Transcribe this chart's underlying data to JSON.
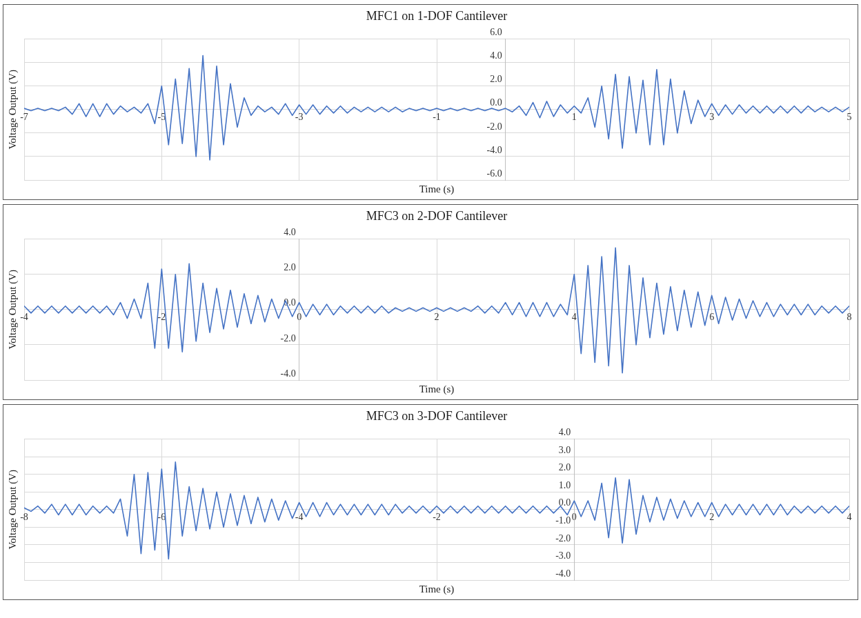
{
  "chart_data": [
    {
      "type": "line",
      "title": "MFC1 on 1-DOF Cantilever",
      "xlabel": "Time (s)",
      "ylabel": "Voltage Output (V)",
      "xlim": [
        -7,
        5
      ],
      "xticks": [
        -7,
        -5,
        -3,
        -1,
        1,
        3,
        5
      ],
      "ylim": [
        -6,
        6
      ],
      "yticks": [
        {
          "value": -6,
          "label": "-6.0"
        },
        {
          "value": -4,
          "label": "-4.0"
        },
        {
          "value": -2,
          "label": "-2.0"
        },
        {
          "value": 0,
          "label": "0.0"
        },
        {
          "value": 2,
          "label": "2.0"
        },
        {
          "value": 4,
          "label": "4.0"
        },
        {
          "value": 6,
          "label": "6.0"
        }
      ],
      "grid": true,
      "legend": false,
      "marker": "none",
      "line_style": "solid",
      "x": [
        -7,
        -6.9,
        -6.8,
        -6.7,
        -6.6,
        -6.5,
        -6.4,
        -6.3,
        -6.2,
        -6.1,
        -6,
        -5.9,
        -5.8,
        -5.7,
        -5.6,
        -5.5,
        -5.4,
        -5.3,
        -5.2,
        -5.1,
        -5,
        -4.9,
        -4.8,
        -4.7,
        -4.6,
        -4.5,
        -4.4,
        -4.3,
        -4.2,
        -4.1,
        -4,
        -3.9,
        -3.8,
        -3.7,
        -3.6,
        -3.5,
        -3.4,
        -3.3,
        -3.2,
        -3.1,
        -3,
        -2.9,
        -2.8,
        -2.7,
        -2.6,
        -2.5,
        -2.4,
        -2.3,
        -2.2,
        -2.1,
        -2,
        -1.9,
        -1.8,
        -1.7,
        -1.6,
        -1.5,
        -1.4,
        -1.3,
        -1.2,
        -1.1,
        -1,
        -0.9,
        -0.8,
        -0.7,
        -0.6,
        -0.5,
        -0.4,
        -0.3,
        -0.2,
        -0.1,
        0,
        0.1,
        0.2,
        0.3,
        0.4,
        0.5,
        0.6,
        0.7,
        0.8,
        0.9,
        1,
        1.1,
        1.2,
        1.3,
        1.4,
        1.5,
        1.6,
        1.7,
        1.8,
        1.9,
        2,
        2.1,
        2.2,
        2.3,
        2.4,
        2.5,
        2.6,
        2.7,
        2.8,
        2.9,
        3,
        3.1,
        3.2,
        3.3,
        3.4,
        3.5,
        3.6,
        3.7,
        3.8,
        3.9,
        4,
        4.1,
        4.2,
        4.3,
        4.4,
        4.5,
        4.6,
        4.7,
        4.8,
        4.9,
        5
      ],
      "series": [
        {
          "color": "#4472c4",
          "values": [
            0.1,
            -0.1,
            0.1,
            -0.1,
            0.1,
            -0.1,
            0.2,
            -0.4,
            0.5,
            -0.6,
            0.5,
            -0.6,
            0.5,
            -0.4,
            0.3,
            -0.2,
            0.2,
            -0.3,
            0.5,
            -1.2,
            2.0,
            -3.0,
            2.6,
            -2.9,
            3.5,
            -4.0,
            4.6,
            -4.3,
            3.7,
            -3.0,
            2.2,
            -1.5,
            1.0,
            -0.5,
            0.3,
            -0.2,
            0.2,
            -0.4,
            0.5,
            -0.5,
            0.4,
            -0.4,
            0.4,
            -0.4,
            0.3,
            -0.3,
            0.3,
            -0.3,
            0.2,
            -0.2,
            0.2,
            -0.2,
            0.2,
            -0.2,
            0.2,
            -0.2,
            0.1,
            -0.1,
            0.1,
            -0.1,
            0.1,
            -0.1,
            0.1,
            -0.1,
            0.1,
            -0.1,
            0.1,
            -0.1,
            0.1,
            -0.1,
            0.1,
            -0.2,
            0.3,
            -0.5,
            0.6,
            -0.7,
            0.7,
            -0.6,
            0.4,
            -0.3,
            0.3,
            -0.3,
            1.0,
            -1.5,
            2.0,
            -2.5,
            3.0,
            -3.3,
            2.8,
            -2.0,
            2.5,
            -3.0,
            3.4,
            -3.0,
            2.6,
            -2.0,
            1.6,
            -1.2,
            0.8,
            -0.6,
            0.5,
            -0.5,
            0.4,
            -0.4,
            0.4,
            -0.3,
            0.3,
            -0.3,
            0.3,
            -0.3,
            0.3,
            -0.3,
            0.3,
            -0.3,
            0.3,
            -0.2,
            0.2,
            -0.2,
            0.2,
            -0.2,
            0.2
          ]
        }
      ]
    },
    {
      "type": "line",
      "title": "MFC3 on 2-DOF Cantilever",
      "xlabel": "Time (s)",
      "ylabel": "Voltage Output (V)",
      "xlim": [
        -4,
        8
      ],
      "xticks": [
        -4,
        -2,
        0,
        2,
        4,
        6,
        8
      ],
      "ylim": [
        -4,
        4
      ],
      "yticks": [
        {
          "value": -4,
          "label": "-4.0"
        },
        {
          "value": -2,
          "label": "-2.0"
        },
        {
          "value": 0,
          "label": "0.0"
        },
        {
          "value": 2,
          "label": "2.0"
        },
        {
          "value": 4,
          "label": "4.0"
        }
      ],
      "grid": true,
      "legend": false,
      "marker": "none",
      "line_style": "solid",
      "x": [
        -4,
        -3.9,
        -3.8,
        -3.7,
        -3.6,
        -3.5,
        -3.4,
        -3.3,
        -3.2,
        -3.1,
        -3,
        -2.9,
        -2.8,
        -2.7,
        -2.6,
        -2.5,
        -2.4,
        -2.3,
        -2.2,
        -2.1,
        -2,
        -1.9,
        -1.8,
        -1.7,
        -1.6,
        -1.5,
        -1.4,
        -1.3,
        -1.2,
        -1.1,
        -1,
        -0.9,
        -0.8,
        -0.7,
        -0.6,
        -0.5,
        -0.4,
        -0.3,
        -0.2,
        -0.1,
        0,
        0.1,
        0.2,
        0.3,
        0.4,
        0.5,
        0.6,
        0.7,
        0.8,
        0.9,
        1,
        1.1,
        1.2,
        1.3,
        1.4,
        1.5,
        1.6,
        1.7,
        1.8,
        1.9,
        2,
        2.1,
        2.2,
        2.3,
        2.4,
        2.5,
        2.6,
        2.7,
        2.8,
        2.9,
        3,
        3.1,
        3.2,
        3.3,
        3.4,
        3.5,
        3.6,
        3.7,
        3.8,
        3.9,
        4,
        4.1,
        4.2,
        4.3,
        4.4,
        4.5,
        4.6,
        4.7,
        4.8,
        4.9,
        5,
        5.1,
        5.2,
        5.3,
        5.4,
        5.5,
        5.6,
        5.7,
        5.8,
        5.9,
        6,
        6.1,
        6.2,
        6.3,
        6.4,
        6.5,
        6.6,
        6.7,
        6.8,
        6.9,
        7,
        7.1,
        7.2,
        7.3,
        7.4,
        7.5,
        7.6,
        7.7,
        7.8,
        7.9,
        8
      ],
      "series": [
        {
          "color": "#4472c4",
          "values": [
            0.2,
            -0.2,
            0.2,
            -0.2,
            0.2,
            -0.2,
            0.2,
            -0.2,
            0.2,
            -0.2,
            0.2,
            -0.2,
            0.2,
            -0.3,
            0.4,
            -0.5,
            0.6,
            -0.5,
            1.5,
            -2.2,
            2.3,
            -2.2,
            2.0,
            -2.4,
            2.6,
            -1.8,
            1.5,
            -1.3,
            1.2,
            -1.1,
            1.1,
            -1.0,
            0.9,
            -0.8,
            0.8,
            -0.7,
            0.6,
            -0.5,
            0.5,
            -0.4,
            0.4,
            -0.4,
            0.3,
            -0.3,
            0.3,
            -0.3,
            0.2,
            -0.2,
            0.2,
            -0.2,
            0.2,
            -0.2,
            0.2,
            -0.2,
            0.1,
            -0.1,
            0.1,
            -0.1,
            0.1,
            -0.1,
            0.1,
            -0.1,
            0.1,
            -0.1,
            0.1,
            -0.1,
            0.2,
            -0.2,
            0.2,
            -0.2,
            0.4,
            -0.3,
            0.4,
            -0.4,
            0.4,
            -0.4,
            0.4,
            -0.4,
            0.3,
            -0.3,
            2.0,
            -2.5,
            2.5,
            -3.0,
            3.0,
            -3.2,
            3.5,
            -3.6,
            2.5,
            -2.0,
            1.8,
            -1.6,
            1.5,
            -1.4,
            1.3,
            -1.2,
            1.1,
            -1.0,
            1.0,
            -0.9,
            0.8,
            -0.8,
            0.7,
            -0.6,
            0.6,
            -0.5,
            0.5,
            -0.4,
            0.4,
            -0.4,
            0.3,
            -0.3,
            0.3,
            -0.3,
            0.3,
            -0.3,
            0.2,
            -0.2,
            0.2,
            -0.2,
            0.2
          ]
        }
      ]
    },
    {
      "type": "line",
      "title": "MFC3 on 3-DOF Cantilever",
      "xlabel": "Time (s)",
      "ylabel": "Voltage Output (V)",
      "xlim": [
        -8,
        4
      ],
      "xticks": [
        -8,
        -6,
        -4,
        -2,
        0,
        2,
        4
      ],
      "ylim": [
        -4,
        4
      ],
      "yticks": [
        {
          "value": -4,
          "label": "-4.0"
        },
        {
          "value": -3,
          "label": "-3.0"
        },
        {
          "value": -2,
          "label": "-2.0"
        },
        {
          "value": -1,
          "label": "-1.0"
        },
        {
          "value": 0,
          "label": "0.0"
        },
        {
          "value": 1,
          "label": "1.0"
        },
        {
          "value": 2,
          "label": "2.0"
        },
        {
          "value": 3,
          "label": "3.0"
        },
        {
          "value": 4,
          "label": "4.0"
        }
      ],
      "grid": true,
      "legend": false,
      "marker": "none",
      "line_style": "solid",
      "x": [
        -8,
        -7.9,
        -7.8,
        -7.7,
        -7.6,
        -7.5,
        -7.4,
        -7.3,
        -7.2,
        -7.1,
        -7,
        -6.9,
        -6.8,
        -6.7,
        -6.6,
        -6.5,
        -6.4,
        -6.3,
        -6.2,
        -6.1,
        -6,
        -5.9,
        -5.8,
        -5.7,
        -5.6,
        -5.5,
        -5.4,
        -5.3,
        -5.2,
        -5.1,
        -5,
        -4.9,
        -4.8,
        -4.7,
        -4.6,
        -4.5,
        -4.4,
        -4.3,
        -4.2,
        -4.1,
        -4,
        -3.9,
        -3.8,
        -3.7,
        -3.6,
        -3.5,
        -3.4,
        -3.3,
        -3.2,
        -3.1,
        -3,
        -2.9,
        -2.8,
        -2.7,
        -2.6,
        -2.5,
        -2.4,
        -2.3,
        -2.2,
        -2.1,
        -2,
        -1.9,
        -1.8,
        -1.7,
        -1.6,
        -1.5,
        -1.4,
        -1.3,
        -1.2,
        -1.1,
        -1,
        -0.9,
        -0.8,
        -0.7,
        -0.6,
        -0.5,
        -0.4,
        -0.3,
        -0.2,
        -0.1,
        0,
        0.1,
        0.2,
        0.3,
        0.4,
        0.5,
        0.6,
        0.7,
        0.8,
        0.9,
        1,
        1.1,
        1.2,
        1.3,
        1.4,
        1.5,
        1.6,
        1.7,
        1.8,
        1.9,
        2,
        2.1,
        2.2,
        2.3,
        2.4,
        2.5,
        2.6,
        2.7,
        2.8,
        2.9,
        3,
        3.1,
        3.2,
        3.3,
        3.4,
        3.5,
        3.6,
        3.7,
        3.8,
        3.9,
        4
      ],
      "series": [
        {
          "color": "#4472c4",
          "values": [
            0.1,
            -0.1,
            0.2,
            -0.2,
            0.3,
            -0.3,
            0.3,
            -0.3,
            0.3,
            -0.3,
            0.2,
            -0.2,
            0.2,
            -0.2,
            0.6,
            -1.5,
            2.0,
            -2.5,
            2.1,
            -2.3,
            2.3,
            -2.8,
            2.7,
            -1.5,
            1.3,
            -1.2,
            1.2,
            -1.1,
            1.0,
            -1.0,
            0.9,
            -0.9,
            0.8,
            -0.8,
            0.7,
            -0.7,
            0.6,
            -0.6,
            0.5,
            -0.5,
            0.4,
            -0.4,
            0.4,
            -0.4,
            0.4,
            -0.3,
            0.3,
            -0.3,
            0.3,
            -0.3,
            0.3,
            -0.3,
            0.3,
            -0.3,
            0.3,
            -0.2,
            0.2,
            -0.2,
            0.2,
            -0.2,
            0.2,
            -0.2,
            0.2,
            -0.2,
            0.2,
            -0.2,
            0.2,
            -0.2,
            0.2,
            -0.2,
            0.2,
            -0.2,
            0.2,
            -0.2,
            0.2,
            -0.2,
            0.2,
            -0.2,
            0.2,
            -0.3,
            0.5,
            -0.4,
            0.5,
            -0.6,
            1.5,
            -1.6,
            1.8,
            -1.9,
            1.7,
            -1.4,
            0.8,
            -0.7,
            0.7,
            -0.6,
            0.6,
            -0.5,
            0.5,
            -0.4,
            0.4,
            -0.4,
            0.4,
            -0.4,
            0.3,
            -0.3,
            0.3,
            -0.3,
            0.3,
            -0.3,
            0.3,
            -0.3,
            0.3,
            -0.3,
            0.2,
            -0.2,
            0.2,
            -0.2,
            0.2,
            -0.2,
            0.2,
            -0.2,
            0.2
          ]
        }
      ]
    }
  ]
}
